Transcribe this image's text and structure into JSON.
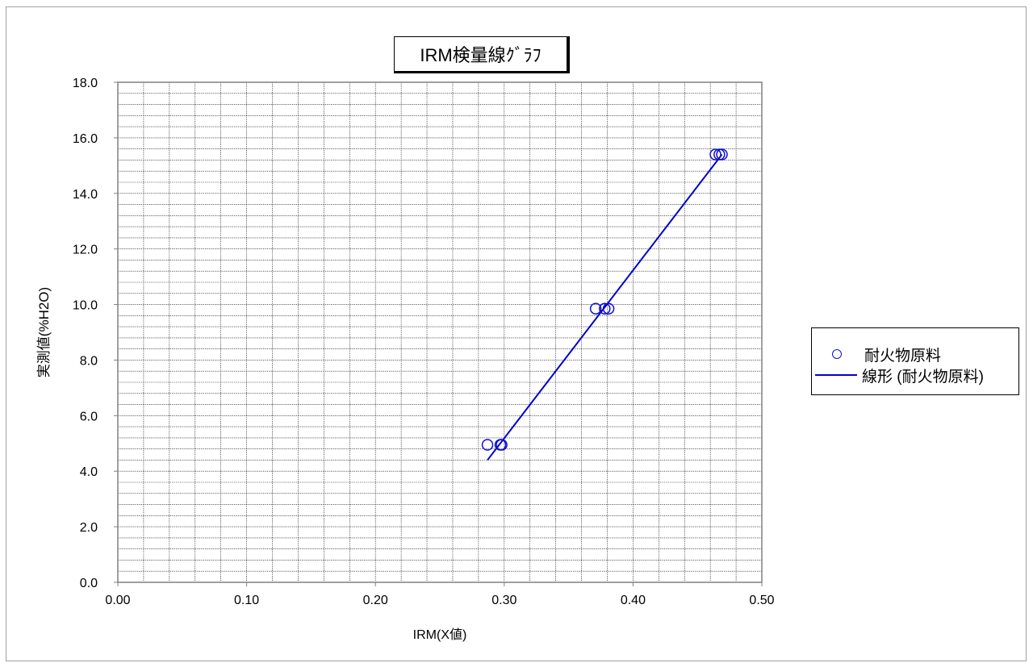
{
  "chart_data": {
    "type": "scatter",
    "title": "IRM検量線ｸﾞﾗﾌ",
    "xlabel": "IRM(X値)",
    "ylabel": "実測値(%H2O)",
    "xlim": [
      0.0,
      0.5
    ],
    "ylim": [
      0.0,
      18.0
    ],
    "x_ticks": [
      "0.00",
      "0.10",
      "0.20",
      "0.30",
      "0.40",
      "0.50"
    ],
    "y_ticks": [
      "0.0",
      "2.0",
      "4.0",
      "6.0",
      "8.0",
      "10.0",
      "12.0",
      "14.0",
      "16.0",
      "18.0"
    ],
    "grid": true,
    "legend_position": "right",
    "series": [
      {
        "name": "耐火物原料",
        "kind": "scatter",
        "marker": "open-circle",
        "color": "#1010d0",
        "points": [
          [
            0.287,
            4.95
          ],
          [
            0.297,
            4.95
          ],
          [
            0.298,
            4.95
          ],
          [
            0.371,
            9.85
          ],
          [
            0.378,
            9.85
          ],
          [
            0.381,
            9.85
          ],
          [
            0.464,
            15.4
          ],
          [
            0.467,
            15.4
          ],
          [
            0.469,
            15.4
          ]
        ]
      },
      {
        "name": "線形 (耐火物原料)",
        "kind": "line",
        "color": "#0000cc",
        "points": [
          [
            0.287,
            4.4
          ],
          [
            0.469,
            15.4
          ]
        ]
      }
    ]
  }
}
